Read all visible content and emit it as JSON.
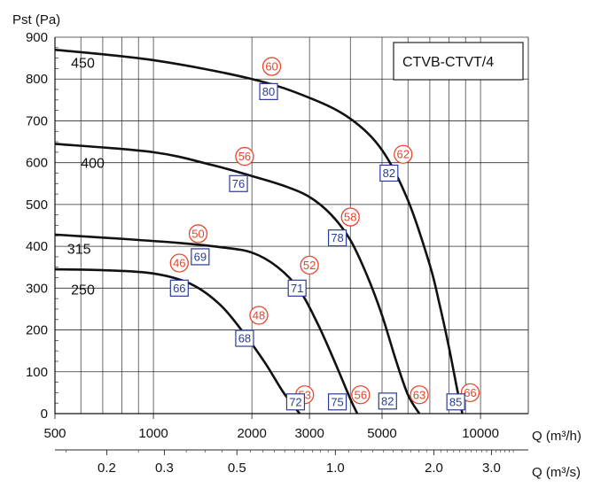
{
  "chart_data": {
    "type": "line",
    "title": "CTVB-CTVT/4",
    "ylabel": "Pst (Pa)",
    "xlabel_primary": "Q (m³/h)",
    "xlabel_secondary": "Q (m³/s)",
    "x_scale": "log",
    "xlim": [
      500,
      14000
    ],
    "ylim": [
      0,
      900
    ],
    "grid": true,
    "y_ticks": [
      0,
      100,
      200,
      300,
      400,
      500,
      600,
      700,
      800,
      900
    ],
    "x_ticks_primary": [
      500,
      1000,
      2000,
      3000,
      5000,
      10000
    ],
    "x_ticks_secondary": [
      0.2,
      0.3,
      0.5,
      1.0,
      2.0,
      3.0
    ],
    "x_tick_labels_secondary": [
      "0.2",
      "0.3",
      "0.5",
      "1.0",
      "2.0",
      "3.0"
    ],
    "series": [
      {
        "name": "250",
        "x": [
          500,
          700,
          1000,
          1300,
          1600,
          1900,
          2200,
          2500,
          2800
        ],
        "y": [
          345,
          343,
          335,
          310,
          260,
          190,
          120,
          50,
          0
        ]
      },
      {
        "name": "315",
        "x": [
          500,
          800,
          1200,
          1600,
          2000,
          2400,
          2800,
          3200,
          3600,
          4000,
          4200
        ],
        "y": [
          428,
          418,
          408,
          398,
          385,
          350,
          295,
          210,
          120,
          35,
          0
        ]
      },
      {
        "name": "400",
        "x": [
          500,
          1000,
          1500,
          2000,
          2500,
          3000,
          3500,
          4000,
          4500,
          5000,
          5500,
          6000,
          6500
        ],
        "y": [
          645,
          625,
          595,
          568,
          545,
          518,
          475,
          415,
          330,
          235,
          130,
          45,
          0
        ]
      },
      {
        "name": "450",
        "x": [
          500,
          1000,
          2000,
          3000,
          4000,
          5000,
          6000,
          7000,
          7500,
          8000,
          8500,
          8800
        ],
        "y": [
          870,
          845,
          800,
          755,
          705,
          630,
          510,
          355,
          260,
          160,
          55,
          0
        ]
      }
    ],
    "annotations": {
      "circles": [
        {
          "text": "60",
          "x": 2300,
          "y": 830
        },
        {
          "text": "56",
          "x": 1900,
          "y": 615
        },
        {
          "text": "62",
          "x": 5800,
          "y": 620
        },
        {
          "text": "58",
          "x": 4000,
          "y": 470
        },
        {
          "text": "50",
          "x": 1370,
          "y": 430
        },
        {
          "text": "46",
          "x": 1200,
          "y": 360
        },
        {
          "text": "52",
          "x": 3000,
          "y": 355
        },
        {
          "text": "48",
          "x": 2100,
          "y": 235
        },
        {
          "text": "53",
          "x": 2900,
          "y": 45
        },
        {
          "text": "56",
          "x": 4300,
          "y": 45
        },
        {
          "text": "63",
          "x": 6500,
          "y": 45
        },
        {
          "text": "66",
          "x": 9300,
          "y": 50
        }
      ],
      "boxes": [
        {
          "text": "80",
          "x": 2250,
          "y": 770
        },
        {
          "text": "76",
          "x": 1820,
          "y": 550
        },
        {
          "text": "82",
          "x": 5250,
          "y": 575
        },
        {
          "text": "78",
          "x": 3650,
          "y": 420
        },
        {
          "text": "69",
          "x": 1390,
          "y": 375
        },
        {
          "text": "66",
          "x": 1200,
          "y": 300
        },
        {
          "text": "71",
          "x": 2750,
          "y": 300
        },
        {
          "text": "68",
          "x": 1900,
          "y": 180
        },
        {
          "text": "72",
          "x": 2720,
          "y": 28
        },
        {
          "text": "75",
          "x": 3650,
          "y": 28
        },
        {
          "text": "82",
          "x": 5200,
          "y": 30
        },
        {
          "text": "85",
          "x": 8400,
          "y": 28
        }
      ]
    },
    "curve_labels": [
      {
        "text": "450",
        "x": 560,
        "y": 840
      },
      {
        "text": "400",
        "x": 600,
        "y": 600
      },
      {
        "text": "315",
        "x": 545,
        "y": 395
      },
      {
        "text": "250",
        "x": 560,
        "y": 298
      }
    ],
    "colors": {
      "curve": "#111111",
      "grid": "#2b2b2b",
      "circle": "#e8452c",
      "box": "#2a3b9c"
    }
  }
}
